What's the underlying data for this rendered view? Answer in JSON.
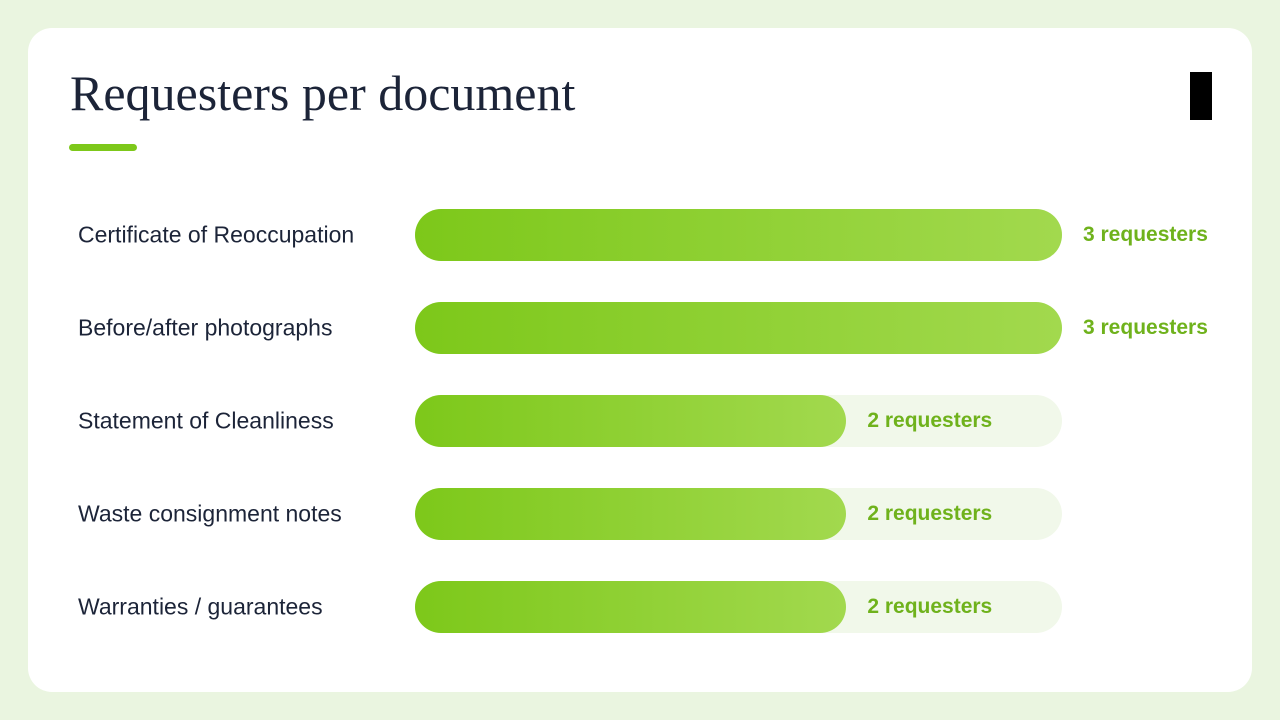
{
  "chart_data": {
    "type": "bar",
    "title": "Requesters per document",
    "categories": [
      "Certificate of Reoccupation",
      "Before/after photographs",
      "Statement of Cleanliness",
      "Waste consignment notes",
      "Warranties / guarantees"
    ],
    "values": [
      3,
      3,
      2,
      2,
      2
    ],
    "value_labels": [
      "3 requesters",
      "3 requesters",
      "2 requesters",
      "2 requesters",
      "2 requesters"
    ],
    "color": "#7dc81a"
  }
}
